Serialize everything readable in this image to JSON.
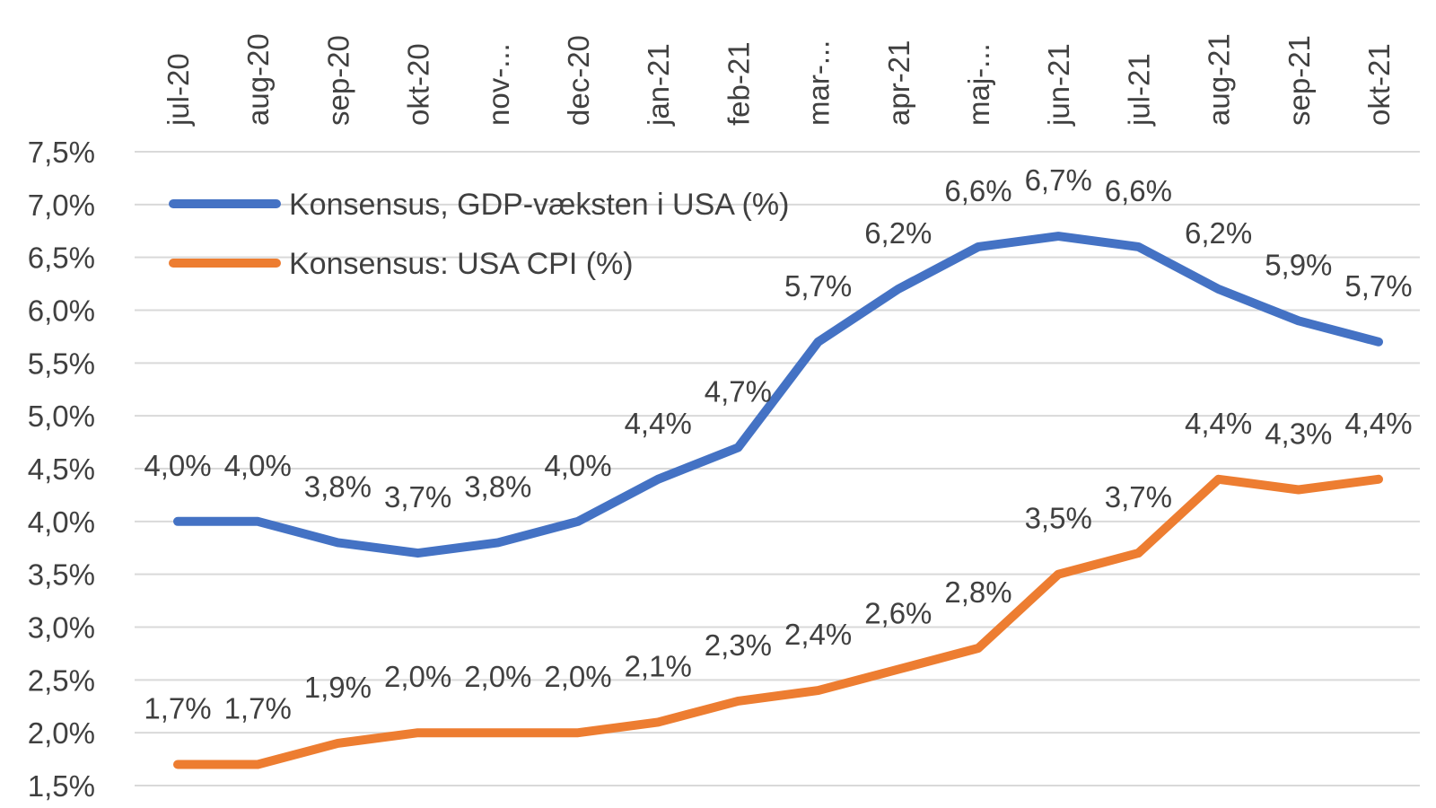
{
  "chart_data": {
    "type": "line",
    "title": "",
    "xlabel": "",
    "ylabel": "",
    "categories": [
      "jul-20",
      "aug-20",
      "sep-20",
      "okt-20",
      "nov-...",
      "dec-20",
      "jan-21",
      "feb-21",
      "mar-...",
      "apr-21",
      "maj-...",
      "jun-21",
      "jul-21",
      "aug-21",
      "sep-21",
      "okt-21"
    ],
    "ylim": [
      1.5,
      7.5
    ],
    "yticks": [
      "1,5%",
      "2,0%",
      "2,5%",
      "3,0%",
      "3,5%",
      "4,0%",
      "4,5%",
      "5,0%",
      "5,5%",
      "6,0%",
      "6,5%",
      "7,0%",
      "7,5%"
    ],
    "ytick_values": [
      1.5,
      2.0,
      2.5,
      3.0,
      3.5,
      4.0,
      4.5,
      5.0,
      5.5,
      6.0,
      6.5,
      7.0,
      7.5
    ],
    "grid": true,
    "legend_position": "top-left",
    "series": [
      {
        "name": "Konsensus, GDP-væksten i USA (%)",
        "color": "#4472c4",
        "values": [
          4.0,
          4.0,
          3.8,
          3.7,
          3.8,
          4.0,
          4.4,
          4.7,
          5.7,
          6.2,
          6.6,
          6.7,
          6.6,
          6.2,
          5.9,
          5.7
        ],
        "labels": [
          "4,0%",
          "4,0%",
          "3,8%",
          "3,7%",
          "3,8%",
          "4,0%",
          "4,4%",
          "4,7%",
          "5,7%",
          "6,2%",
          "6,6%",
          "6,7%",
          "6,6%",
          "6,2%",
          "5,9%",
          "5,7%"
        ]
      },
      {
        "name": "Konsensus: USA CPI (%)",
        "color": "#ed7d31",
        "values": [
          1.7,
          1.7,
          1.9,
          2.0,
          2.0,
          2.0,
          2.1,
          2.3,
          2.4,
          2.6,
          2.8,
          3.5,
          3.7,
          4.4,
          4.3,
          4.4
        ],
        "labels": [
          "1,7%",
          "1,7%",
          "1,9%",
          "2,0%",
          "2,0%",
          "2,0%",
          "2,1%",
          "2,3%",
          "2,4%",
          "2,6%",
          "2,8%",
          "3,5%",
          "3,7%",
          "4,4%",
          "4,3%",
          "4,4%"
        ]
      }
    ]
  }
}
